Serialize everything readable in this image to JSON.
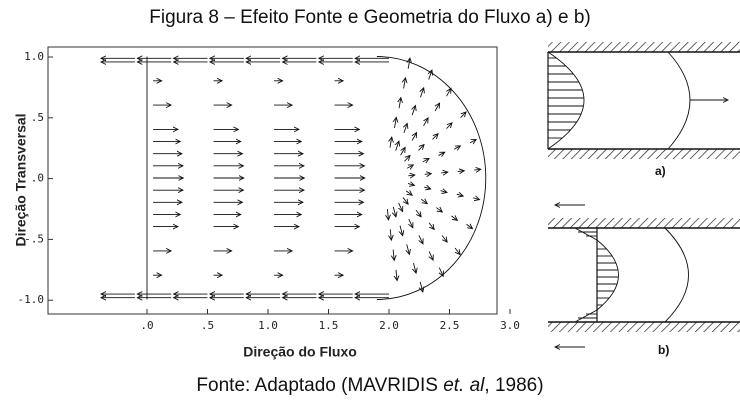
{
  "caption": "Figura 8 – Efeito Fonte e Geometria do Fluxo a) e b)",
  "plot": {
    "y_label": "Direção Transversal",
    "x_label": "Direção do Fluxo",
    "yticks": [
      "1.0",
      ".5",
      ".0",
      "-.5",
      "-1.0"
    ],
    "xticks": [
      ".0",
      ".5",
      "1.0",
      "1.5",
      "2.0",
      "2.5",
      "3.0"
    ]
  },
  "panels": [
    "a)",
    "b)"
  ],
  "source": {
    "text_before": "Fonte: Adaptado (MAVRIDIS ",
    "italic": "et. al",
    "text_after": ", 1986)"
  }
}
